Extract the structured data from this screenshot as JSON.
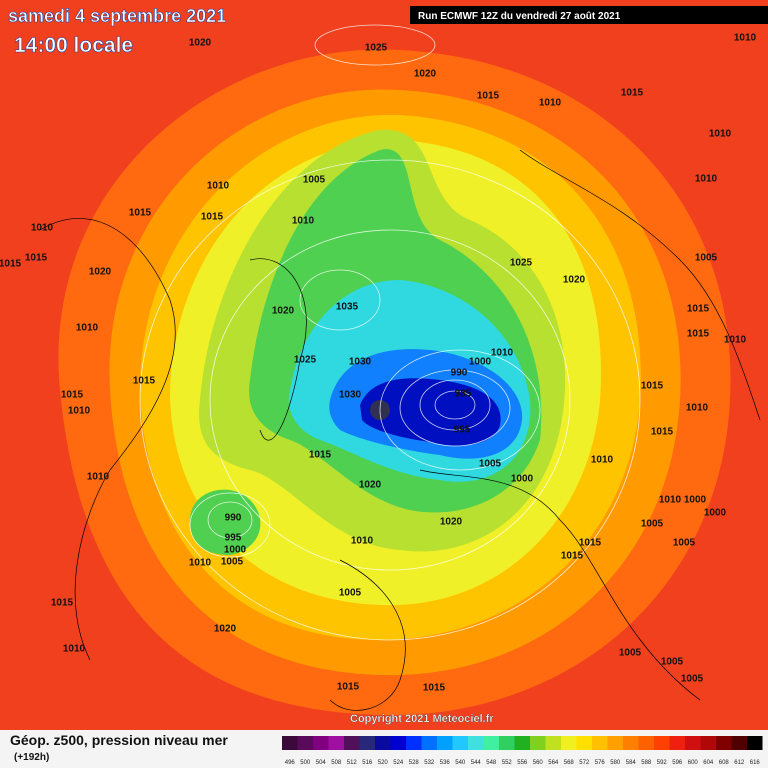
{
  "header": {
    "date": "samedi 4 septembre 2021",
    "time": "14:00 locale",
    "run": "Run ECMWF 12Z du vendredi 27 août 2021"
  },
  "copyright": "Copyright 2021 Meteociel.fr",
  "footer": {
    "caption": "Géop. z500, pression niveau mer",
    "lead": "(+192h)"
  },
  "legend": {
    "values": [
      496,
      500,
      504,
      508,
      512,
      516,
      520,
      524,
      528,
      532,
      536,
      540,
      544,
      548,
      552,
      556,
      560,
      564,
      568,
      572,
      576,
      580,
      584,
      588,
      592,
      596,
      600,
      604,
      608,
      612,
      616
    ],
    "colors": [
      "#3b0a3b",
      "#5a0a5a",
      "#800080",
      "#a010a0",
      "#50105a",
      "#28287a",
      "#0a0aa0",
      "#0000d0",
      "#0030ff",
      "#0070ff",
      "#00a0ff",
      "#20c8ff",
      "#40e0e0",
      "#40f0a0",
      "#30d060",
      "#20b020",
      "#80d020",
      "#c0e020",
      "#f0f020",
      "#ffe000",
      "#ffc000",
      "#ffa000",
      "#ff8000",
      "#ff6000",
      "#ff4000",
      "#f02010",
      "#d01010",
      "#b00808",
      "#800000",
      "#500000",
      "#000000"
    ]
  },
  "isobar_labels": [
    1020,
    1025,
    1010,
    1020,
    1015,
    1010,
    1015,
    1010,
    1010,
    1005,
    1010,
    1015,
    1015,
    1010,
    1010,
    1015,
    1015,
    1020,
    1025,
    1020,
    1005,
    1035,
    1020,
    1015,
    1015,
    1010,
    1010,
    1010,
    1000,
    1025,
    1030,
    990,
    1030,
    985,
    1015,
    1015,
    1010,
    1015,
    1010,
    995,
    1015,
    1015,
    1005,
    1010,
    1010,
    1020,
    1000,
    1010,
    1000,
    1000,
    990,
    1020,
    1005,
    995,
    1000,
    1010,
    1010,
    1005,
    1015,
    1005,
    1015,
    1005,
    1015,
    1020,
    1010,
    1005,
    1005,
    1005,
    1015,
    1015
  ]
}
